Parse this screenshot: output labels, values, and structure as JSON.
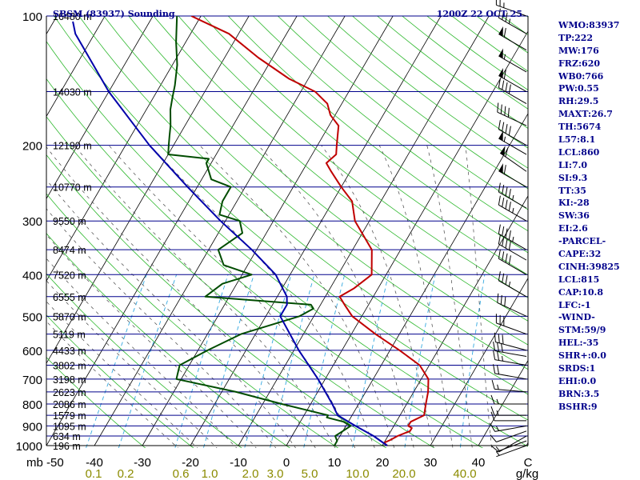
{
  "header": {
    "station": "SBSM (83937) Sounding",
    "time": "1200Z 22 OCT 25"
  },
  "indices": [
    "WMO:83937",
    "TP:222",
    "MW:176",
    "FRZ:620",
    "WB0:766",
    "PW:0.55",
    "RH:29.5",
    "MAXT:26.7",
    "TH:5674",
    "L57:8.1",
    "LCL:860",
    "LI:7.0",
    "SI:9.3",
    "TT:35",
    "KI:-28",
    "SW:36",
    "EI:2.6",
    "-PARCEL-",
    "CAPE:32",
    "CINH:39825",
    "LCL:815",
    "CAP:10.8",
    "LFC:-1",
    "-WIND-",
    "STM:59/9",
    "HEL:-35",
    "SHR+:0.0",
    "SRDS:1",
    "EHI:0.0",
    "BRN:3.5",
    "BSHR:9"
  ],
  "chart_data": {
    "type": "line",
    "title": "SBSM (83937) Sounding",
    "subtitle": "1200Z 22 OCT 25",
    "xlabel": "C",
    "ylabel": "mb",
    "mixing_ratio_unit": "g/kg",
    "x_ticks": [
      -50,
      -40,
      -30,
      -20,
      -10,
      0,
      10,
      20,
      30,
      40
    ],
    "xlim": [
      -50,
      50
    ],
    "ylim": [
      1000,
      100
    ],
    "y_scale": "log",
    "pressure_ticks": [
      100,
      200,
      300,
      400,
      500,
      600,
      700,
      800,
      900,
      1000
    ],
    "mixing_ratio_labels": [
      "0.1",
      "0.2",
      "0.6",
      "1.0",
      "2.0",
      "3.0",
      "5.0",
      "10.0",
      "20.0",
      "40.0"
    ],
    "height_labels": [
      {
        "p": 100,
        "label": "16480 m"
      },
      {
        "p": 150,
        "label": "14030 m"
      },
      {
        "p": 200,
        "label": "12190 m"
      },
      {
        "p": 250,
        "label": "10770 m"
      },
      {
        "p": 300,
        "label": "9550 m"
      },
      {
        "p": 350,
        "label": "8474 m"
      },
      {
        "p": 400,
        "label": "7520 m"
      },
      {
        "p": 450,
        "label": "6555 m"
      },
      {
        "p": 500,
        "label": "5870 m"
      },
      {
        "p": 550,
        "label": "5119 m"
      },
      {
        "p": 600,
        "label": "4433 m"
      },
      {
        "p": 650,
        "label": "3802 m"
      },
      {
        "p": 700,
        "label": "3198 m"
      },
      {
        "p": 750,
        "label": "2623 m"
      },
      {
        "p": 800,
        "label": "2086 m"
      },
      {
        "p": 850,
        "label": "1579 m"
      },
      {
        "p": 900,
        "label": "1095 m"
      },
      {
        "p": 950,
        "label": "634 m"
      },
      {
        "p": 1000,
        "label": "196 m"
      }
    ],
    "series": [
      {
        "role": "temperature",
        "color": "#c00000",
        "points": [
          [
            1000,
            21
          ],
          [
            985,
            20
          ],
          [
            970,
            21
          ],
          [
            950,
            22
          ],
          [
            925,
            24
          ],
          [
            910,
            24
          ],
          [
            900,
            23
          ],
          [
            880,
            23
          ],
          [
            850,
            25
          ],
          [
            800,
            24
          ],
          [
            750,
            23
          ],
          [
            700,
            21.5
          ],
          [
            650,
            18
          ],
          [
            600,
            12
          ],
          [
            550,
            5
          ],
          [
            500,
            -2
          ],
          [
            470,
            -5
          ],
          [
            450,
            -7
          ],
          [
            430,
            -5
          ],
          [
            400,
            -3
          ],
          [
            350,
            -6
          ],
          [
            300,
            -13
          ],
          [
            270,
            -16
          ],
          [
            250,
            -20
          ],
          [
            230,
            -24
          ],
          [
            220,
            -26
          ],
          [
            210,
            -25
          ],
          [
            200,
            -26
          ],
          [
            180,
            -28
          ],
          [
            170,
            -31
          ],
          [
            160,
            -33
          ],
          [
            150,
            -37
          ],
          [
            140,
            -44
          ],
          [
            125,
            -53
          ],
          [
            110,
            -62
          ],
          [
            100,
            -72
          ]
        ]
      },
      {
        "role": "dewpoint",
        "color": "#004c00",
        "points": [
          [
            1000,
            10
          ],
          [
            975,
            10
          ],
          [
            950,
            9
          ],
          [
            925,
            10
          ],
          [
            900,
            11
          ],
          [
            880,
            9
          ],
          [
            860,
            5
          ],
          [
            850,
            5
          ],
          [
            800,
            -6
          ],
          [
            750,
            -17
          ],
          [
            700,
            -31
          ],
          [
            650,
            -32
          ],
          [
            600,
            -28
          ],
          [
            550,
            -23
          ],
          [
            500,
            -13
          ],
          [
            480,
            -11
          ],
          [
            470,
            -12
          ],
          [
            450,
            -35
          ],
          [
            420,
            -33
          ],
          [
            400,
            -28
          ],
          [
            380,
            -35
          ],
          [
            350,
            -38
          ],
          [
            320,
            -35
          ],
          [
            300,
            -37
          ],
          [
            290,
            -42
          ],
          [
            270,
            -43
          ],
          [
            250,
            -43
          ],
          [
            240,
            -48
          ],
          [
            220,
            -51
          ],
          [
            215,
            -51
          ],
          [
            210,
            -60
          ],
          [
            200,
            -61
          ],
          [
            190,
            -62
          ],
          [
            180,
            -63
          ],
          [
            165,
            -65
          ],
          [
            155,
            -66
          ],
          [
            145,
            -67
          ],
          [
            130,
            -69
          ],
          [
            115,
            -72
          ],
          [
            100,
            -75
          ]
        ]
      },
      {
        "role": "parcel",
        "color": "#0000aa",
        "points": [
          [
            1000,
            21
          ],
          [
            950,
            17
          ],
          [
            900,
            12
          ],
          [
            850,
            7
          ],
          [
            800,
            4.5
          ],
          [
            700,
            -1.5
          ],
          [
            600,
            -9
          ],
          [
            500,
            -17
          ],
          [
            470,
            -17
          ],
          [
            450,
            -18
          ],
          [
            400,
            -23
          ],
          [
            350,
            -31
          ],
          [
            300,
            -41
          ],
          [
            250,
            -52
          ],
          [
            200,
            -65
          ],
          [
            150,
            -80
          ],
          [
            110,
            -94
          ],
          [
            103,
            -96
          ]
        ]
      }
    ],
    "wind_barbs": [
      {
        "p": 1000,
        "dir": 250,
        "spd": 5
      },
      {
        "p": 975,
        "dir": 250,
        "spd": 5
      },
      {
        "p": 950,
        "dir": 240,
        "spd": 10
      },
      {
        "p": 925,
        "dir": 250,
        "spd": 10
      },
      {
        "p": 900,
        "dir": 260,
        "spd": 15
      },
      {
        "p": 875,
        "dir": 270,
        "spd": 10
      },
      {
        "p": 850,
        "dir": 270,
        "spd": 15
      },
      {
        "p": 800,
        "dir": 270,
        "spd": 15
      },
      {
        "p": 750,
        "dir": 275,
        "spd": 15
      },
      {
        "p": 700,
        "dir": 280,
        "spd": 20
      },
      {
        "p": 650,
        "dir": 280,
        "spd": 25
      },
      {
        "p": 620,
        "dir": 280,
        "spd": 30
      },
      {
        "p": 600,
        "dir": 285,
        "spd": 30
      },
      {
        "p": 550,
        "dir": 290,
        "spd": 30
      },
      {
        "p": 500,
        "dir": 295,
        "spd": 30
      },
      {
        "p": 450,
        "dir": 300,
        "spd": 35
      },
      {
        "p": 400,
        "dir": 300,
        "spd": 40
      },
      {
        "p": 370,
        "dir": 300,
        "spd": 40
      },
      {
        "p": 350,
        "dir": 300,
        "spd": 45
      },
      {
        "p": 300,
        "dir": 300,
        "spd": 45
      },
      {
        "p": 280,
        "dir": 300,
        "spd": 45
      },
      {
        "p": 250,
        "dir": 300,
        "spd": 60
      },
      {
        "p": 230,
        "dir": 305,
        "spd": 60
      },
      {
        "p": 210,
        "dir": 300,
        "spd": 55
      },
      {
        "p": 200,
        "dir": 300,
        "spd": 40
      },
      {
        "p": 180,
        "dir": 295,
        "spd": 40
      },
      {
        "p": 160,
        "dir": 300,
        "spd": 40
      },
      {
        "p": 150,
        "dir": 300,
        "spd": 60
      },
      {
        "p": 135,
        "dir": 300,
        "spd": 55
      },
      {
        "p": 120,
        "dir": 300,
        "spd": 60
      },
      {
        "p": 110,
        "dir": 300,
        "spd": 35
      },
      {
        "p": 100,
        "dir": 290,
        "spd": 25
      }
    ]
  }
}
